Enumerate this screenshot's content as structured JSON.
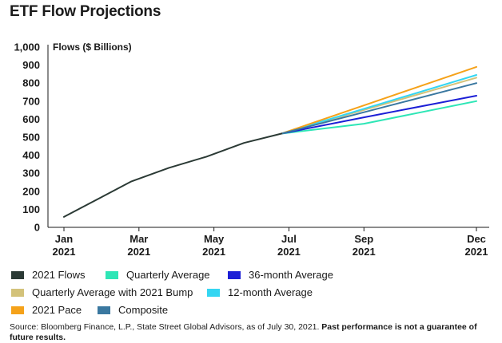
{
  "title": "ETF Flow Projections",
  "chart_data": {
    "type": "line",
    "ylabel": "Flows ($ Billions)",
    "ylim": [
      0,
      1000
    ],
    "yticks": [
      "0",
      "100",
      "200",
      "300",
      "400",
      "500",
      "600",
      "700",
      "800",
      "900",
      "1,000"
    ],
    "xticks": [
      {
        "month": "Jan",
        "year": "2021",
        "m": 1
      },
      {
        "month": "Mar",
        "year": "2021",
        "m": 3
      },
      {
        "month": "May",
        "year": "2021",
        "m": 5
      },
      {
        "month": "Jul",
        "year": "2021",
        "m": 7
      },
      {
        "month": "Sep",
        "year": "2021",
        "m": 9
      },
      {
        "month": "Dec",
        "year": "2021",
        "m": 12
      }
    ],
    "series": [
      {
        "name": "2021 Flows",
        "color": "#2b3a35",
        "points": [
          [
            1,
            58
          ],
          [
            2.8,
            255
          ],
          [
            3.8,
            330
          ],
          [
            4.8,
            392
          ],
          [
            5.8,
            468
          ],
          [
            6.8,
            520
          ]
        ]
      },
      {
        "name": "Quarterly Average",
        "color": "#2ee6b6",
        "points": [
          [
            6.8,
            520
          ],
          [
            9,
            575
          ],
          [
            12,
            700
          ]
        ]
      },
      {
        "name": "36-month Average",
        "color": "#1c1fd6",
        "points": [
          [
            6.8,
            520
          ],
          [
            9,
            610
          ],
          [
            12,
            730
          ]
        ]
      },
      {
        "name": "Quarterly Average with 2021 Bump",
        "color": "#d3c27a",
        "points": [
          [
            6.8,
            520
          ],
          [
            12,
            830
          ]
        ]
      },
      {
        "name": "12-month Average",
        "color": "#34d6f2",
        "points": [
          [
            6.8,
            520
          ],
          [
            12,
            845
          ]
        ]
      },
      {
        "name": "2021 Pace",
        "color": "#f5a21a",
        "points": [
          [
            6.8,
            520
          ],
          [
            12,
            890
          ]
        ]
      },
      {
        "name": "Composite",
        "color": "#3a78a0",
        "points": [
          [
            6.8,
            520
          ],
          [
            12,
            800
          ]
        ]
      }
    ]
  },
  "source": {
    "text": "Source: Bloomberg Finance, L.P., State Street Global Advisors, as of July 30, 2021.",
    "bold": "Past performance is not a guarantee of future results."
  }
}
